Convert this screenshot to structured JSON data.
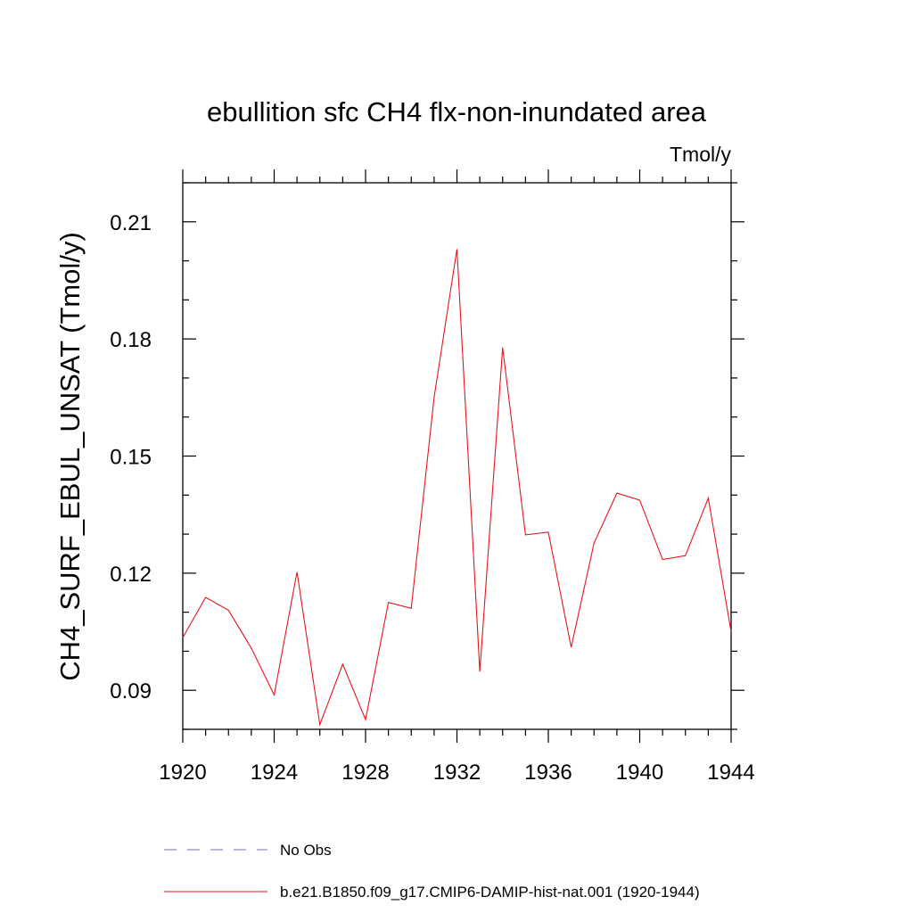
{
  "chart_data": {
    "type": "line",
    "title": "ebullition sfc CH4 flx-non-inundated area",
    "units_label": "Tmol/y",
    "xlabel": "",
    "ylabel": "CH4_SURF_EBUL_UNSAT  (Tmol/y)",
    "xlim": [
      1920,
      1944
    ],
    "ylim": [
      0.08,
      0.22
    ],
    "x_ticks": [
      1920,
      1924,
      1928,
      1932,
      1936,
      1940,
      1944
    ],
    "x_tick_labels": [
      "1920",
      "1924",
      "1928",
      "1932",
      "1936",
      "1940",
      "1944"
    ],
    "y_ticks": [
      0.09,
      0.12,
      0.15,
      0.18,
      0.21
    ],
    "y_tick_labels": [
      "0.09",
      "0.12",
      "0.15",
      "0.18",
      "0.21"
    ],
    "grid": false,
    "legend_placement": "bottom",
    "series": [
      {
        "name": "b.e21.B1850.f09_g17.CMIP6-DAMIP-hist-nat.001 (1920-1944)",
        "color": "#e8141c",
        "dash": "solid",
        "x": [
          1920,
          1921,
          1922,
          1923,
          1924,
          1925,
          1926,
          1927,
          1928,
          1929,
          1930,
          1931,
          1932,
          1933,
          1934,
          1935,
          1936,
          1937,
          1938,
          1939,
          1940,
          1941,
          1942,
          1943,
          1944
        ],
        "values": [
          0.1035,
          0.1138,
          0.1105,
          0.1008,
          0.0888,
          0.1203,
          0.0812,
          0.0967,
          0.0825,
          0.1125,
          0.111,
          0.165,
          0.203,
          0.0948,
          0.1778,
          0.1298,
          0.1305,
          0.101,
          0.1277,
          0.1405,
          0.1387,
          0.1235,
          0.1245,
          0.1392,
          0.105
        ]
      },
      {
        "name": "No Obs",
        "color": "#7b6fb8",
        "dash": "dashed",
        "x": [],
        "values": []
      }
    ]
  }
}
